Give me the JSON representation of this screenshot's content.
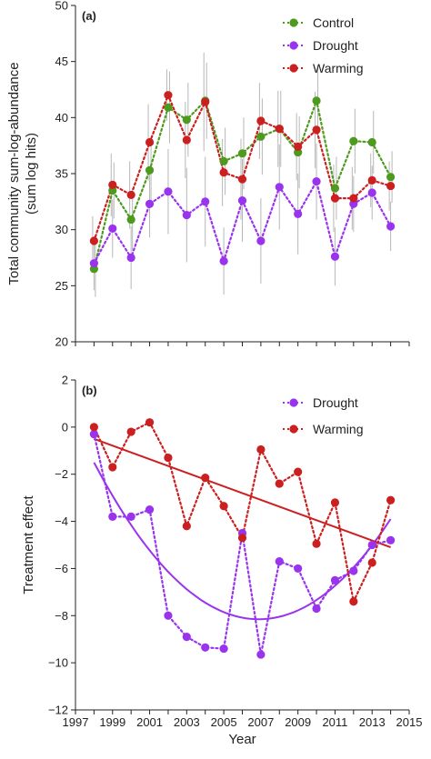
{
  "colors": {
    "control": "#4d9a1e",
    "drought": "#9933ee",
    "warming": "#cc1f1f",
    "errorbar": "#b7b7b7"
  },
  "chart_data": [
    {
      "type": "line",
      "panel_label": "(a)",
      "ylabel_line1": "Total community sum-log-abundance",
      "ylabel_line2": "(sum log hits)",
      "ylim": [
        20,
        50
      ],
      "yticks": [
        20,
        25,
        30,
        35,
        40,
        45,
        50
      ],
      "xlim": [
        1997,
        2015
      ],
      "legend_position": "top-right",
      "x": [
        1998,
        1999,
        2000,
        2001,
        2002,
        2003,
        2004,
        2005,
        2006,
        2007,
        2008,
        2009,
        2010,
        2011,
        2012,
        2013,
        2014
      ],
      "series": [
        {
          "name": "Control",
          "color_key": "control",
          "values": [
            26.5,
            33.5,
            30.9,
            35.3,
            40.9,
            39.8,
            41.5,
            36.1,
            36.8,
            38.3,
            39.0,
            36.9,
            41.5,
            33.7,
            37.9,
            37.8,
            34.7
          ],
          "err": [
            2.5,
            2.5,
            2.8,
            3.0,
            3.2,
            3.3,
            3.4,
            3.0,
            3.2,
            3.4,
            3.4,
            3.2,
            3.2,
            2.8,
            2.9,
            2.8,
            2.3
          ]
        },
        {
          "name": "Drought",
          "color_key": "drought",
          "values": [
            27.0,
            30.1,
            27.5,
            32.3,
            33.4,
            31.3,
            32.5,
            27.2,
            32.6,
            29.0,
            33.8,
            31.4,
            34.3,
            27.6,
            32.3,
            33.3,
            30.3
          ],
          "err": [
            2.4,
            2.6,
            2.8,
            3.0,
            3.8,
            4.2,
            4.0,
            3.0,
            3.7,
            3.8,
            3.8,
            3.6,
            3.4,
            2.6,
            2.5,
            2.4,
            2.2
          ]
        },
        {
          "name": "Warming",
          "color_key": "warming",
          "values": [
            29.0,
            34.0,
            33.1,
            37.8,
            42.0,
            38.0,
            41.4,
            35.1,
            34.5,
            39.7,
            39.0,
            37.4,
            38.9,
            32.8,
            32.8,
            34.4,
            33.9
          ],
          "err": [
            2.2,
            2.8,
            3.0,
            3.4,
            2.3,
            3.4,
            4.4,
            3.0,
            3.6,
            3.4,
            3.4,
            3.0,
            3.4,
            3.0,
            2.8,
            2.4,
            2.2
          ]
        }
      ]
    },
    {
      "type": "line",
      "panel_label": "(b)",
      "ylabel": "Treatment effect",
      "xlabel": "Year",
      "ylim": [
        -12,
        2
      ],
      "yticks": [
        -12,
        -10,
        -8,
        -6,
        -4,
        -2,
        0,
        2
      ],
      "xlim": [
        1997,
        2015
      ],
      "xticks": [
        1997,
        1999,
        2001,
        2003,
        2005,
        2007,
        2009,
        2011,
        2013,
        2015
      ],
      "legend_position": "top-right",
      "x": [
        1998,
        1999,
        2000,
        2001,
        2002,
        2003,
        2004,
        2005,
        2006,
        2007,
        2008,
        2009,
        2010,
        2011,
        2012,
        2013,
        2014
      ],
      "series": [
        {
          "name": "Drought",
          "color_key": "drought",
          "values": [
            -0.3,
            -3.8,
            -3.8,
            -3.5,
            -8.0,
            -8.9,
            -9.35,
            -9.4,
            -4.5,
            -9.65,
            -5.7,
            -6.0,
            -7.7,
            -6.5,
            -6.1,
            -5.0,
            -4.8
          ],
          "trend": {
            "kind": "quadratic",
            "x": [
              1998,
              2007,
              2014
            ],
            "y": [
              -1.5,
              -8.15,
              -3.9
            ]
          }
        },
        {
          "name": "Warming",
          "color_key": "warming",
          "values": [
            0.0,
            -1.7,
            -0.2,
            0.2,
            -1.3,
            -4.2,
            -2.15,
            -3.35,
            -4.7,
            -0.95,
            -2.4,
            -1.9,
            -4.95,
            -3.2,
            -7.4,
            -5.75,
            -3.1
          ],
          "trend": {
            "kind": "linear",
            "x": [
              1998,
              2014
            ],
            "y": [
              -0.5,
              -5.1
            ]
          }
        }
      ]
    }
  ]
}
